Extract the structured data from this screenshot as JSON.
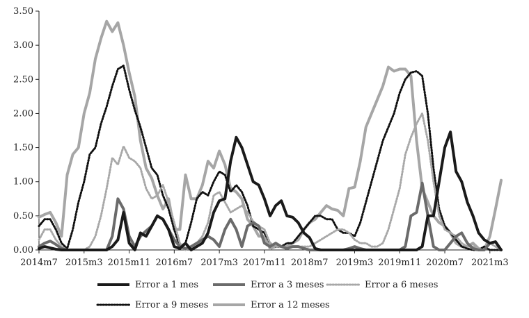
{
  "chart_data": {
    "type": "line",
    "title": "",
    "xlabel": "",
    "ylabel": "",
    "ylim": [
      0,
      3.5
    ],
    "yticks": [
      "0.00",
      "0.50",
      "1.00",
      "1.50",
      "2.00",
      "2.50",
      "3.00",
      "3.50"
    ],
    "xticks": [
      {
        "label": "2014m7",
        "index": 0
      },
      {
        "label": "2015m3",
        "index": 8
      },
      {
        "label": "2015m11",
        "index": 16
      },
      {
        "label": "2016m7",
        "index": 24
      },
      {
        "label": "2017m3",
        "index": 32
      },
      {
        "label": "2017m11",
        "index": 40
      },
      {
        "label": "2018m7",
        "index": 48
      },
      {
        "label": "2019m3",
        "index": 56
      },
      {
        "label": "2019m11",
        "index": 64
      },
      {
        "label": "2020m7",
        "index": 72
      },
      {
        "label": "2021m3",
        "index": 80
      }
    ],
    "legend": "bottom",
    "grid": false,
    "series": [
      {
        "name": "Error a 1 mes",
        "color": "#1a1a1a",
        "dash": "solid",
        "width": 4,
        "values": [
          0.02,
          0.05,
          0.03,
          0.01,
          0,
          0,
          0,
          0,
          0,
          0,
          0,
          0,
          0,
          0.05,
          0.15,
          0.55,
          0.1,
          0,
          0.25,
          0.2,
          0.35,
          0.5,
          0.45,
          0.3,
          0.05,
          0.02,
          0.1,
          0,
          0.05,
          0.1,
          0.25,
          0.55,
          0.72,
          0.75,
          1.3,
          1.65,
          1.5,
          1.25,
          1.0,
          0.95,
          0.75,
          0.5,
          0.65,
          0.72,
          0.5,
          0.48,
          0.4,
          0.25,
          0.18,
          0.02,
          0,
          0,
          0,
          0,
          0,
          0,
          0,
          0,
          0,
          0,
          0,
          0,
          0,
          0,
          0,
          0,
          0,
          0,
          0.05,
          0.5,
          0.5,
          1.0,
          1.5,
          1.73,
          1.15,
          1.0,
          0.7,
          0.5,
          0.25,
          0.15,
          0.1,
          0.12,
          0.0
        ]
      },
      {
        "name": "Error a 3 meses",
        "color": "#6b6b6b",
        "dash": "solid",
        "width": 4,
        "values": [
          0.05,
          0.1,
          0.13,
          0.08,
          0.02,
          0,
          0,
          0,
          0,
          0,
          0,
          0,
          0,
          0.2,
          0.75,
          0.6,
          0.2,
          0.05,
          0.2,
          0.28,
          0.35,
          0.5,
          0.45,
          0.3,
          0.15,
          0.05,
          0.02,
          0.05,
          0.1,
          0.15,
          0.2,
          0.15,
          0.05,
          0.3,
          0.45,
          0.3,
          0.05,
          0.35,
          0.4,
          0.35,
          0.1,
          0.05,
          0.1,
          0.05,
          0.02,
          0.05,
          0.05,
          0.02,
          0,
          0,
          0,
          0,
          0,
          0,
          0,
          0.02,
          0.05,
          0.02,
          0,
          0,
          0,
          0,
          0,
          0,
          0,
          0.05,
          0.5,
          0.55,
          0.98,
          0.5,
          0.05,
          0,
          0,
          0.1,
          0.2,
          0.25,
          0.1,
          0.02,
          0,
          0,
          0.1,
          0.12,
          0.0
        ]
      },
      {
        "name": "Error a 6 meses",
        "color": "#a8a8a8",
        "dash": "dotted",
        "width": 3,
        "values": [
          0.15,
          0.3,
          0.3,
          0.15,
          0.05,
          0,
          0,
          0,
          0,
          0.05,
          0.2,
          0.5,
          0.9,
          1.35,
          1.25,
          1.52,
          1.35,
          1.3,
          1.2,
          0.9,
          0.75,
          0.8,
          0.95,
          0.7,
          0.4,
          0.1,
          0,
          0.05,
          0.1,
          0.2,
          0.4,
          0.8,
          0.85,
          0.7,
          0.55,
          0.6,
          0.65,
          0.55,
          0.42,
          0.35,
          0.3,
          0.1,
          0.05,
          0.05,
          0.05,
          0.05,
          0.05,
          0.05,
          0.05,
          0.1,
          0.15,
          0.2,
          0.25,
          0.3,
          0.3,
          0.25,
          0.15,
          0.1,
          0.1,
          0.05,
          0.05,
          0.1,
          0.3,
          0.6,
          0.9,
          1.4,
          1.65,
          1.85,
          2.0,
          1.6,
          1.0,
          0.5,
          0.3,
          0.25,
          0.2,
          0.1,
          0.05,
          0.05,
          0.02,
          0,
          0.1,
          0.05,
          0.0
        ]
      },
      {
        "name": "Error a 9 meses",
        "color": "#111111",
        "dash": "dotted",
        "width": 3,
        "values": [
          0.35,
          0.45,
          0.45,
          0.3,
          0.1,
          0.02,
          0.3,
          0.7,
          1.0,
          1.4,
          1.5,
          1.85,
          2.1,
          2.4,
          2.65,
          2.7,
          2.35,
          2.05,
          1.8,
          1.5,
          1.2,
          1.1,
          0.8,
          0.6,
          0.3,
          0.05,
          0.1,
          0.4,
          0.75,
          0.85,
          0.8,
          1.0,
          1.15,
          1.1,
          0.85,
          0.95,
          0.85,
          0.65,
          0.35,
          0.3,
          0.25,
          0.1,
          0.05,
          0.05,
          0.1,
          0.1,
          0.2,
          0.3,
          0.4,
          0.5,
          0.5,
          0.45,
          0.45,
          0.3,
          0.25,
          0.25,
          0.2,
          0.4,
          0.7,
          1.0,
          1.3,
          1.6,
          1.8,
          2.0,
          2.3,
          2.5,
          2.6,
          2.62,
          2.55,
          2.0,
          1.2,
          0.6,
          0.35,
          0.25,
          0.15,
          0.05,
          0.02,
          0,
          0,
          0.05,
          0.0,
          0.0,
          0.0
        ]
      },
      {
        "name": "Error a 12 meses",
        "color": "#a6a6a6",
        "dash": "solid",
        "width": 4,
        "values": [
          0.48,
          0.52,
          0.55,
          0.4,
          0.2,
          1.1,
          1.4,
          1.5,
          2.0,
          2.3,
          2.8,
          3.1,
          3.35,
          3.2,
          3.33,
          3.0,
          2.6,
          2.25,
          1.6,
          1.2,
          1.05,
          0.8,
          0.6,
          0.75,
          0.3,
          0.3,
          1.1,
          0.75,
          0.75,
          0.95,
          1.3,
          1.2,
          1.45,
          1.25,
          0.9,
          0.85,
          0.75,
          0.45,
          0.35,
          0.2,
          0.2,
          0.02,
          0.05,
          0.05,
          0.05,
          0.1,
          0.15,
          0.3,
          0.4,
          0.45,
          0.55,
          0.65,
          0.6,
          0.58,
          0.5,
          0.9,
          0.92,
          1.3,
          1.8,
          2.0,
          2.2,
          2.4,
          2.68,
          2.62,
          2.65,
          2.65,
          2.55,
          1.6,
          0.9,
          0.7,
          0.5,
          0.4,
          0.35,
          0.25,
          0.1,
          0.05,
          0.05,
          0.1,
          0.02,
          0,
          0.2,
          0.6,
          1.02
        ]
      }
    ]
  }
}
